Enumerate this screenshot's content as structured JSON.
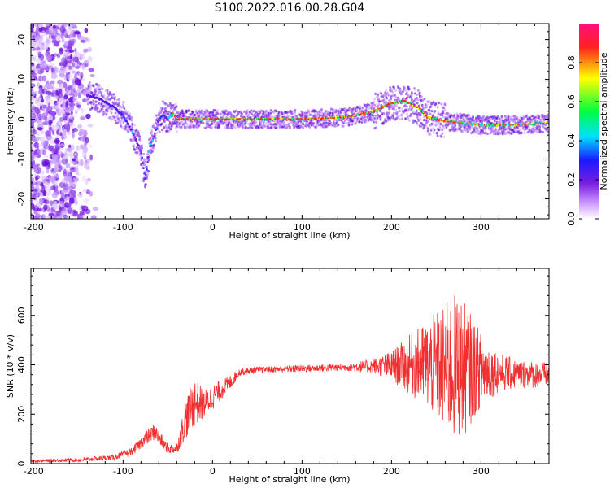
{
  "title": "S100.2022.016.00.28.G04",
  "colors": {
    "snr_line": "#f03030",
    "background": "#ffffff",
    "axis": "#000000"
  },
  "chart_data": [
    {
      "type": "heatmap",
      "title": "S100.2022.016.00.28.G04",
      "xlabel": "Height of straight line (km)",
      "ylabel": "Frequency (Hz)",
      "xlim": [
        -203,
        376
      ],
      "ylim": [
        -25,
        24
      ],
      "xticks": [
        -200,
        -100,
        0,
        100,
        200,
        300
      ],
      "yticks": [
        -20,
        -10,
        0,
        10,
        20
      ],
      "colorbar": {
        "label": "Normalized spectral amplitude",
        "range": [
          0,
          1
        ],
        "ticks": [
          0.0,
          0.2,
          0.4,
          0.6,
          0.8
        ],
        "colormap": [
          "#ffffff",
          "#cc99ff",
          "#7a1ee0",
          "#1a1aff",
          "#00e0ff",
          "#00ff40",
          "#ffff00",
          "#ff2020",
          "#ff1080"
        ]
      },
      "ridge": {
        "x": [
          -140,
          -125,
          -110,
          -100,
          -90,
          -80,
          -75,
          -70,
          -65,
          -60,
          -55,
          -50,
          -45,
          -40,
          0,
          50,
          100,
          150,
          180,
          200,
          215,
          230,
          240,
          260,
          280,
          300,
          330,
          376
        ],
        "freq_hz": [
          6,
          5,
          3,
          1,
          -3,
          -8,
          -15,
          -7,
          -4,
          0,
          1,
          0,
          1.5,
          0,
          0,
          0,
          0,
          0.5,
          2,
          4,
          4.5,
          3,
          0.5,
          -0.5,
          -1,
          -1.5,
          -1.5,
          -1
        ]
      },
      "noise_region_x": [
        -203,
        -130
      ]
    },
    {
      "type": "line",
      "xlabel": "Height of straight line (km)",
      "ylabel": "SNR (10 * v/v)",
      "xlim": [
        -203,
        376
      ],
      "ylim": [
        0,
        790
      ],
      "xticks": [
        -200,
        -100,
        0,
        100,
        200,
        300
      ],
      "yticks": [
        0,
        200,
        400,
        600
      ],
      "trend": {
        "x": [
          -203,
          -150,
          -110,
          -90,
          -75,
          -65,
          -50,
          -40,
          -30,
          -20,
          -10,
          0,
          10,
          20,
          30,
          50,
          100,
          150,
          180,
          200,
          220,
          240,
          260,
          270,
          280,
          300,
          320,
          340,
          376
        ],
        "mean": [
          10,
          15,
          25,
          50,
          100,
          130,
          60,
          60,
          180,
          250,
          240,
          270,
          300,
          330,
          370,
          380,
          385,
          390,
          395,
          395,
          400,
          400,
          390,
          390,
          385,
          380,
          370,
          360,
          360
        ],
        "amplitude": [
          5,
          8,
          10,
          15,
          30,
          35,
          20,
          20,
          80,
          100,
          60,
          50,
          40,
          30,
          15,
          12,
          15,
          15,
          30,
          60,
          120,
          180,
          260,
          300,
          280,
          150,
          80,
          60,
          50
        ]
      }
    }
  ]
}
